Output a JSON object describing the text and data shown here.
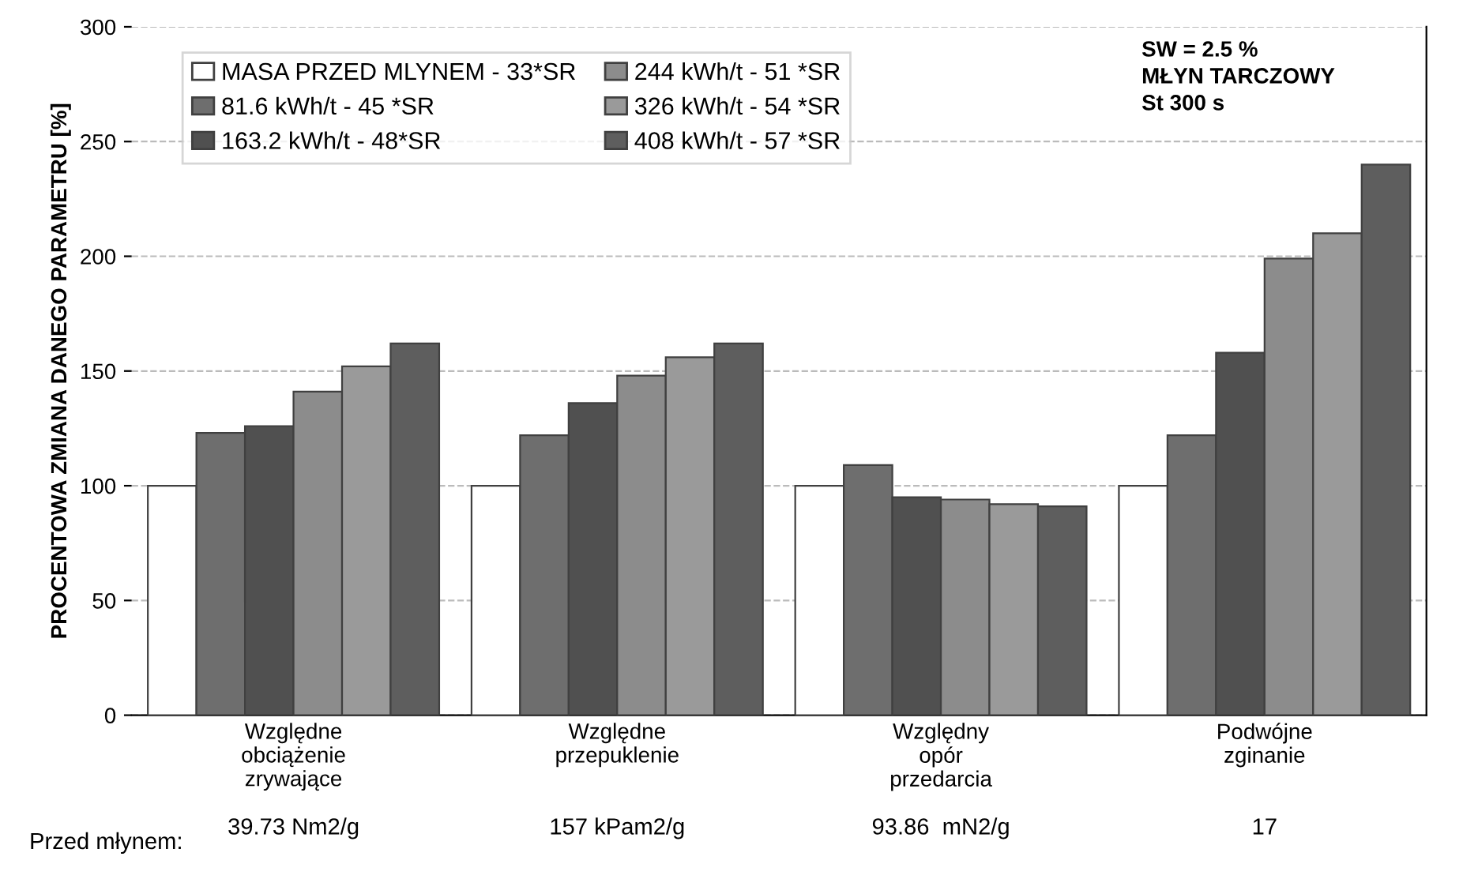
{
  "chart_data": {
    "type": "bar",
    "ylabel": "PROCENTOWA ZMIANA DANEGO PARAMETRU [%]",
    "categories": [
      "Względne\nobciążenie\nzrywające",
      "Względne\nprzepuklenie",
      "Względny\nopór\nprzedarcia",
      "Podwójne\nzginanie"
    ],
    "series": [
      {
        "name": "MASA PRZED MLYNEM - 33*SR",
        "color": "#ffffff",
        "values": [
          100,
          100,
          100,
          100
        ]
      },
      {
        "name": "81.6 kWh/t - 45 *SR",
        "color": "#6e6e6e",
        "values": [
          123,
          122,
          109,
          122
        ]
      },
      {
        "name": "163.2 kWh/t - 48*SR",
        "color": "#505050",
        "values": [
          126,
          136,
          95,
          158
        ]
      },
      {
        "name": "244 kWh/t - 51 *SR",
        "color": "#8c8c8c",
        "values": [
          141,
          148,
          94,
          199
        ]
      },
      {
        "name": "326 kWh/t - 54 *SR",
        "color": "#9a9a9a",
        "values": [
          152,
          156,
          92,
          210
        ]
      },
      {
        "name": "408 kWh/t - 57 *SR",
        "color": "#5e5e5e",
        "values": [
          162,
          162,
          91,
          240
        ]
      }
    ],
    "ylim": [
      0,
      300
    ],
    "yticks": [
      0,
      50,
      100,
      150,
      200,
      250,
      300
    ],
    "grid": "y",
    "legend": "top left",
    "annotations": [
      "SW = 2.5 %\nMŁYN TARCZOWY\nSt 300 s",
      "Przed młynem:",
      "39.73 Nm2/g",
      "157 kPam2/g",
      "93.86  mN2/g",
      "17"
    ]
  }
}
